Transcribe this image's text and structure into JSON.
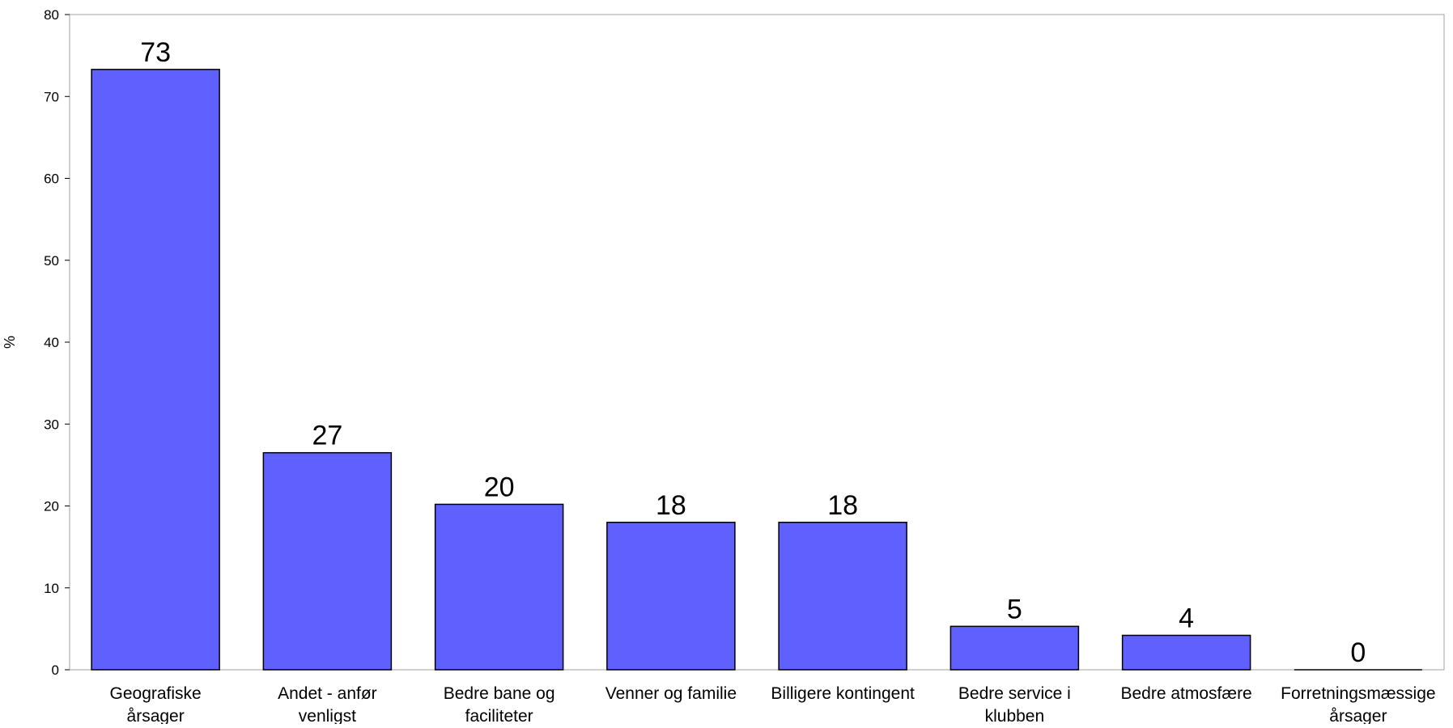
{
  "chart_data": {
    "type": "bar",
    "title": "",
    "xlabel": "",
    "ylabel": "%",
    "ylim": [
      0,
      80
    ],
    "yticks": [
      0,
      10,
      20,
      30,
      40,
      50,
      60,
      70,
      80
    ],
    "grid": false,
    "legend": "none",
    "bar_color": "#6060ff",
    "categories": [
      [
        "Geografiske",
        "årsager"
      ],
      [
        "Andet - anfør",
        "venligst"
      ],
      [
        "Bedre bane og",
        "faciliteter"
      ],
      [
        "Venner og familie"
      ],
      [
        "Billigere kontingent"
      ],
      [
        "Bedre service i",
        "klubben"
      ],
      [
        "Bedre atmosfære"
      ],
      [
        "Forretningsmæssige",
        "årsager"
      ]
    ],
    "values": [
      73.3,
      26.5,
      20.2,
      18.0,
      18.0,
      5.3,
      4.2,
      0
    ],
    "data_labels": [
      "73",
      "27",
      "20",
      "18",
      "18",
      "5",
      "4",
      "0"
    ]
  }
}
